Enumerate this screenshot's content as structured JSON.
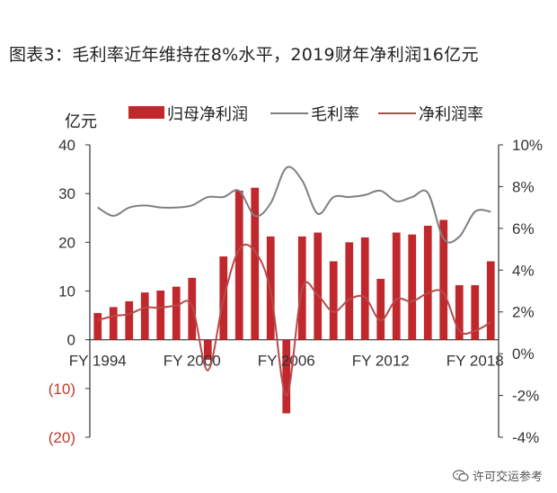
{
  "page": {
    "title": "图表3：毛利率近年维持在8%水平，2019财年净利润16亿元",
    "watermark": "许可交运参考"
  },
  "colors": {
    "bar": "#c0282d",
    "gross_margin_line": "#7f7f7f",
    "net_margin_line": "#b84a4a",
    "axis": "#333333",
    "negative_tick": "#c0392b"
  },
  "chart_data": {
    "type": "bar+line",
    "title": "图表3：毛利率近年维持在8%水平，2019财年净利润16亿元",
    "left_axis_unit": "亿元",
    "x_tick_labels": [
      "FY 1994",
      "FY 2000",
      "FY 2006",
      "FY 2012",
      "FY 2018"
    ],
    "x_tick_positions": [
      0,
      6,
      12,
      18,
      24
    ],
    "categories": [
      "FY 1994",
      "FY 1995",
      "FY 1996",
      "FY 1997",
      "FY 1998",
      "FY 1999",
      "FY 2000",
      "FY 2001",
      "FY 2002",
      "FY 2003",
      "FY 2004",
      "FY 2005",
      "FY 2006",
      "FY 2007",
      "FY 2008",
      "FY 2009",
      "FY 2010",
      "FY 2011",
      "FY 2012",
      "FY 2013",
      "FY 2014",
      "FY 2015",
      "FY 2016",
      "FY 2017",
      "FY 2018",
      "FY 2019"
    ],
    "ylim_left": [
      -20,
      40
    ],
    "yticks_left": [
      -20,
      -10,
      0,
      10,
      20,
      30,
      40
    ],
    "ytick_labels_left": [
      "(20)",
      "(10)",
      "0",
      "10",
      "20",
      "30",
      "40"
    ],
    "ylim_right": [
      -4,
      10
    ],
    "yticks_right": [
      -4,
      -2,
      0,
      2,
      4,
      6,
      8,
      10
    ],
    "ytick_labels_right": [
      "-4%",
      "-2%",
      "0%",
      "2%",
      "4%",
      "6%",
      "8%",
      "10%"
    ],
    "legend": [
      "归母净利润",
      "毛利率",
      "净利润率"
    ],
    "series": [
      {
        "name": "归母净利润",
        "type": "bar",
        "axis": "left",
        "values": [
          5.5,
          6.7,
          7.9,
          9.7,
          10.1,
          10.9,
          12.7,
          -4.1,
          17.1,
          30.6,
          31.2,
          21.2,
          -15.1,
          21.2,
          22.0,
          16.1,
          20.0,
          21.0,
          12.5,
          22.0,
          21.6,
          23.4,
          24.6,
          11.2,
          11.2,
          16.1
        ]
      },
      {
        "name": "毛利率",
        "type": "line",
        "axis": "right",
        "values": [
          7.0,
          6.6,
          7.0,
          7.1,
          7.0,
          7.0,
          7.1,
          7.5,
          7.5,
          7.8,
          6.6,
          7.2,
          8.9,
          8.3,
          6.7,
          7.5,
          7.5,
          7.6,
          7.8,
          7.3,
          7.5,
          7.7,
          5.5,
          5.6,
          6.8,
          6.8
        ]
      },
      {
        "name": "净利润率",
        "type": "line",
        "axis": "right",
        "values": [
          1.6,
          1.8,
          1.9,
          2.2,
          2.2,
          2.3,
          2.3,
          -0.8,
          2.6,
          5.0,
          4.9,
          3.0,
          -2.0,
          3.1,
          2.8,
          2.0,
          2.6,
          2.7,
          1.6,
          2.6,
          2.5,
          2.9,
          2.9,
          1.1,
          1.1,
          1.5
        ]
      }
    ]
  }
}
